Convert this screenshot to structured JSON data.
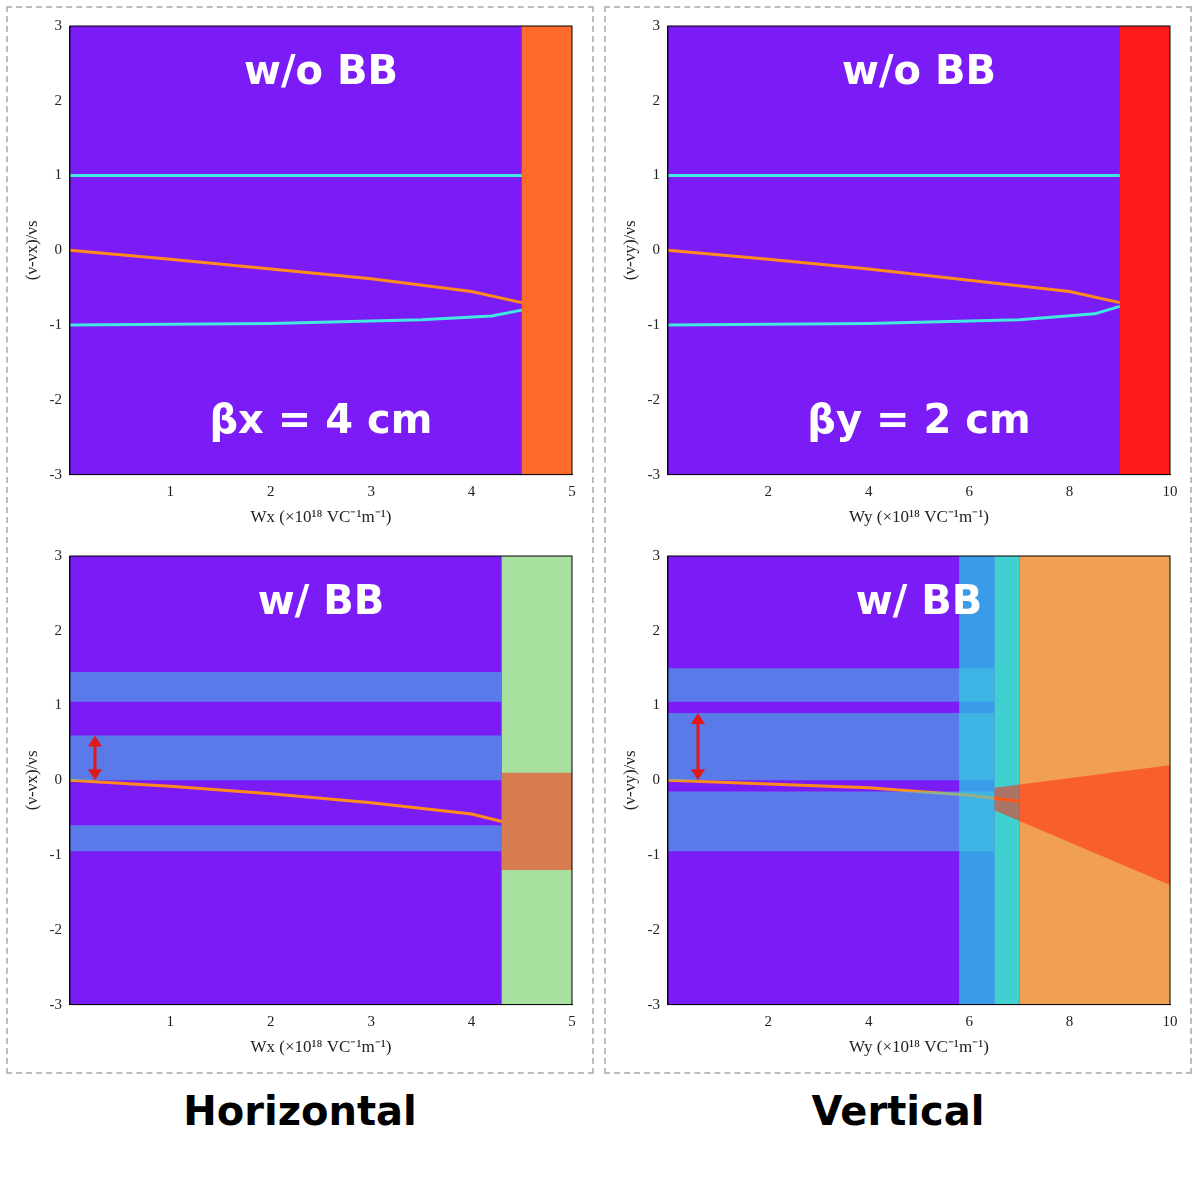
{
  "column_labels": [
    "Horizontal",
    "Vertical"
  ],
  "chart_data": [
    {
      "type": "line",
      "title": "w/o BB",
      "annotation": "βx = 4 cm",
      "x_label": "Wx (×10¹⁸ VC⁻¹m⁻¹)",
      "y_label": "(ν-νx)/νs",
      "xlim": [
        0,
        5
      ],
      "xticks": [
        1,
        2,
        3,
        4,
        5
      ],
      "ylim": [
        -3,
        3
      ],
      "yticks": [
        -3,
        -2,
        -1,
        0,
        1,
        2,
        3
      ],
      "grid": false,
      "series": [
        {
          "color": "#ff8c1a",
          "x": [
            0,
            1,
            2,
            3,
            4,
            4.5
          ],
          "values": [
            0,
            -0.12,
            -0.25,
            -0.38,
            -0.55,
            -0.7
          ]
        },
        {
          "color": "#40e8e0",
          "x": [
            0,
            4.5
          ],
          "values": [
            1,
            1
          ]
        },
        {
          "color": "#40e8e0",
          "x": [
            0,
            2,
            3.5,
            4.2,
            4.5
          ],
          "values": [
            -1,
            -0.98,
            -0.93,
            -0.88,
            -0.8
          ]
        }
      ],
      "regions": [
        {
          "from": 4.5,
          "to": 5,
          "color": "#ff6a2a"
        }
      ]
    },
    {
      "type": "line",
      "title": "w/o BB",
      "annotation": "βy = 2 cm",
      "x_label": "Wy (×10¹⁸ VC⁻¹m⁻¹)",
      "y_label": "(ν-νy)/νs",
      "xlim": [
        0,
        10
      ],
      "xticks": [
        2,
        4,
        6,
        8,
        10
      ],
      "ylim": [
        -3,
        3
      ],
      "yticks": [
        -3,
        -2,
        -1,
        0,
        1,
        2,
        3
      ],
      "grid": false,
      "series": [
        {
          "color": "#ff8c1a",
          "x": [
            0,
            2,
            4,
            6,
            8,
            9
          ],
          "values": [
            0,
            -0.12,
            -0.25,
            -0.4,
            -0.55,
            -0.7
          ]
        },
        {
          "color": "#40e8e0",
          "x": [
            0,
            9
          ],
          "values": [
            1,
            1
          ]
        },
        {
          "color": "#40e8e0",
          "x": [
            0,
            4,
            7,
            8.5,
            9
          ],
          "values": [
            -1,
            -0.98,
            -0.93,
            -0.85,
            -0.75
          ]
        }
      ],
      "regions": [
        {
          "from": 9,
          "to": 10,
          "color": "#ff1a1a"
        }
      ]
    },
    {
      "type": "line",
      "title": "w/ BB",
      "x_label": "Wx (×10¹⁸ VC⁻¹m⁻¹)",
      "y_label": "(ν-νx)/νs",
      "xlim": [
        0,
        5
      ],
      "xticks": [
        1,
        2,
        3,
        4,
        5
      ],
      "ylim": [
        -3,
        3
      ],
      "yticks": [
        -3,
        -2,
        -1,
        0,
        1,
        2,
        3
      ],
      "grid": false,
      "bands": [
        {
          "color": "#40c8e0",
          "x": [
            0,
            4.3
          ],
          "low": [
            1.05,
            1.05
          ],
          "high": [
            1.45,
            1.45
          ]
        },
        {
          "color": "#40c8e0",
          "x": [
            0,
            4.3
          ],
          "low": [
            0,
            0
          ],
          "high": [
            0.6,
            0.6
          ]
        },
        {
          "color": "#40c8e0",
          "x": [
            0,
            4.3
          ],
          "low": [
            -0.95,
            -0.95
          ],
          "high": [
            -0.6,
            -0.6
          ]
        },
        {
          "color": "#ff2a10",
          "x": [
            4.3,
            5
          ],
          "low": [
            -1.2,
            -1.2
          ],
          "high": [
            0.1,
            0.1
          ]
        }
      ],
      "series": [
        {
          "color": "#ff8c1a",
          "x": [
            0,
            1,
            2,
            3,
            4,
            4.3
          ],
          "values": [
            0,
            -0.08,
            -0.18,
            -0.3,
            -0.45,
            -0.55
          ]
        }
      ],
      "regions": [
        {
          "from": 4.3,
          "to": 5,
          "color": "#a8e0a0"
        }
      ],
      "arrow": {
        "x": 0.25,
        "low": 0,
        "high": 0.6
      }
    },
    {
      "type": "line",
      "title": "w/ BB",
      "x_label": "Wy (×10¹⁸ VC⁻¹m⁻¹)",
      "y_label": "(ν-νy)/νs",
      "xlim": [
        0,
        10
      ],
      "xticks": [
        2,
        4,
        6,
        8,
        10
      ],
      "ylim": [
        -3,
        3
      ],
      "yticks": [
        -3,
        -2,
        -1,
        0,
        1,
        2,
        3
      ],
      "grid": false,
      "bands": [
        {
          "color": "#40c8e0",
          "x": [
            0,
            6.5
          ],
          "low": [
            1.05,
            1.05
          ],
          "high": [
            1.5,
            1.5
          ]
        },
        {
          "color": "#40c8e0",
          "x": [
            0,
            6.5
          ],
          "low": [
            0,
            0
          ],
          "high": [
            0.9,
            0.9
          ]
        },
        {
          "color": "#40c8e0",
          "x": [
            0,
            6.5
          ],
          "low": [
            -0.95,
            -0.95
          ],
          "high": [
            -0.15,
            -0.15
          ]
        },
        {
          "color": "#ff2a10",
          "x": [
            6.5,
            10
          ],
          "low": [
            -0.4,
            -1.4
          ],
          "high": [
            -0.1,
            0.2
          ]
        }
      ],
      "series": [
        {
          "color": "#ff8c1a",
          "x": [
            0,
            2,
            4,
            6,
            7
          ],
          "values": [
            0,
            -0.05,
            -0.1,
            -0.2,
            -0.28
          ]
        }
      ],
      "regions": [
        {
          "from": 5.8,
          "to": 6.5,
          "color": "#3a9be8"
        },
        {
          "from": 6.5,
          "to": 7,
          "color": "#40d0d0"
        },
        {
          "from": 7,
          "to": 10,
          "color": "#f0a050"
        }
      ],
      "arrow": {
        "x": 0.6,
        "low": 0,
        "high": 0.9
      }
    }
  ]
}
